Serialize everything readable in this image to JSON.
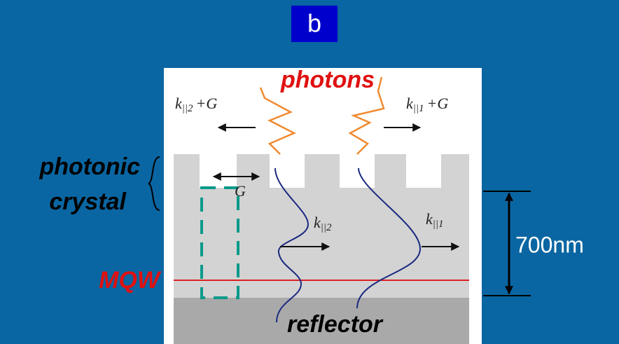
{
  "panel_label": "b",
  "labels": {
    "photons": "photons",
    "photonic": "photonic",
    "crystal": "crystal",
    "mqw": "MQW",
    "reflector": "reflector",
    "thickness": "700nm",
    "g": "G"
  },
  "wavevectors": [
    {
      "k": "k",
      "sub": "||2",
      "rest": "+G"
    },
    {
      "k": "k",
      "sub": "||1",
      "rest": "+G"
    },
    {
      "k": "k",
      "sub": "||2"
    },
    {
      "k": "k",
      "sub": "||1"
    }
  ]
}
